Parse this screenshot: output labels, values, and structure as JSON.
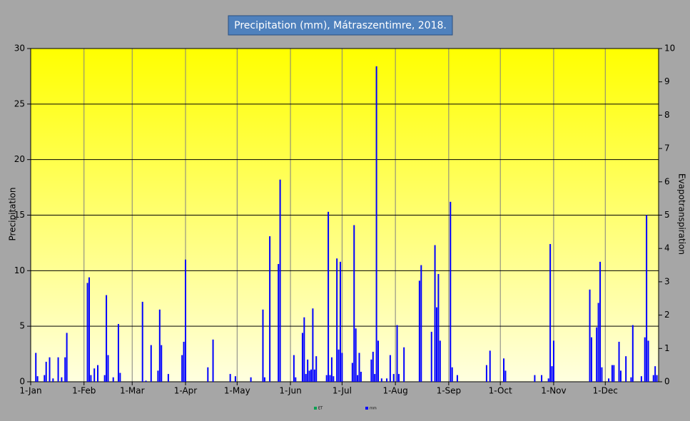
{
  "chart_data": {
    "type": "bar",
    "title": "Precipitation (mm), Mátraszentimre, 2018.",
    "y_label": "Precipitation",
    "y2_label": "Evapotranspiration",
    "xlim": [
      0,
      365
    ],
    "xticks": [
      {
        "value": 0,
        "label": "1-Jan"
      },
      {
        "value": 31,
        "label": "1-Feb"
      },
      {
        "value": 59,
        "label": "1-Mar"
      },
      {
        "value": 90,
        "label": "1-Apr"
      },
      {
        "value": 120,
        "label": "1-May"
      },
      {
        "value": 151,
        "label": "1-Jun"
      },
      {
        "value": 181,
        "label": "1-Jul"
      },
      {
        "value": 212,
        "label": "1-Aug"
      },
      {
        "value": 243,
        "label": "1-Sep"
      },
      {
        "value": 273,
        "label": "1-Oct"
      },
      {
        "value": 304,
        "label": "1-Nov"
      },
      {
        "value": 334,
        "label": "1-Dec"
      }
    ],
    "ylim": [
      0,
      30
    ],
    "yticks": [
      0,
      5,
      10,
      15,
      20,
      25,
      30
    ],
    "y2lim": [
      0,
      10
    ],
    "y2ticks": [
      0,
      1,
      2,
      3,
      4,
      5,
      6,
      7,
      8,
      9,
      10
    ],
    "grid": true,
    "legend": [
      {
        "name": "ET",
        "color": "#00a050"
      },
      {
        "name": "mm",
        "color": "#0000ff"
      }
    ],
    "series": [
      {
        "name": "mm",
        "color": "#0000ff",
        "x": [
          3,
          4,
          8,
          9,
          11,
          13,
          16,
          18,
          20,
          21,
          33,
          34,
          35,
          37,
          39,
          43,
          44,
          45,
          48,
          51,
          52,
          65,
          67,
          70,
          74,
          75,
          76,
          80,
          88,
          89,
          90,
          103,
          106,
          116,
          119,
          128,
          135,
          136,
          139,
          144,
          145,
          153,
          154,
          158,
          159,
          160,
          161,
          162,
          163,
          164,
          165,
          166,
          172,
          173,
          174,
          175,
          176,
          178,
          179,
          180,
          181,
          187,
          188,
          189,
          190,
          191,
          192,
          198,
          199,
          200,
          201,
          202,
          204,
          207,
          209,
          211,
          213,
          214,
          217,
          226,
          227,
          233,
          235,
          236,
          237,
          238,
          244,
          245,
          248,
          265,
          267,
          275,
          276,
          293,
          297,
          301,
          302,
          303,
          304,
          325,
          326,
          329,
          330,
          331,
          332,
          336,
          338,
          339,
          342,
          343,
          346,
          349,
          350,
          355,
          357,
          358,
          359,
          362,
          363,
          364
        ],
        "values": [
          2.6,
          0.5,
          0.6,
          1.8,
          2.2,
          0.3,
          2.2,
          0.4,
          2.2,
          4.4,
          8.9,
          9.4,
          0.6,
          1.2,
          1.5,
          0.6,
          7.8,
          2.4,
          0.4,
          5.2,
          0.8,
          7.2,
          0.1,
          3.3,
          1.0,
          6.5,
          3.3,
          0.7,
          2.4,
          3.6,
          11.0,
          1.3,
          3.8,
          0.7,
          0.5,
          0.4,
          6.5,
          0.4,
          13.1,
          10.6,
          18.2,
          2.4,
          0.4,
          4.4,
          5.8,
          0.7,
          2.0,
          1.0,
          1.1,
          6.6,
          1.1,
          2.3,
          0.6,
          15.3,
          0.6,
          2.2,
          0.5,
          11.1,
          2.9,
          10.8,
          2.6,
          1.7,
          14.1,
          4.8,
          0.6,
          2.6,
          0.9,
          2.0,
          2.7,
          0.7,
          28.4,
          3.7,
          0.3,
          0.3,
          2.4,
          0.7,
          5.1,
          0.7,
          3.1,
          9.1,
          10.5,
          4.5,
          12.3,
          6.7,
          9.7,
          3.7,
          16.2,
          1.3,
          0.6,
          1.5,
          2.8,
          2.1,
          1.0,
          0.6,
          0.6,
          0.3,
          12.4,
          1.4,
          3.7,
          8.3,
          4.0,
          4.9,
          7.1,
          10.8,
          1.3,
          0.3,
          1.5,
          1.5,
          3.6,
          1.0,
          2.3,
          0.4,
          5.1,
          0.5,
          4.0,
          15.0,
          3.7,
          0.6,
          1.4,
          0.6
        ]
      }
    ]
  }
}
